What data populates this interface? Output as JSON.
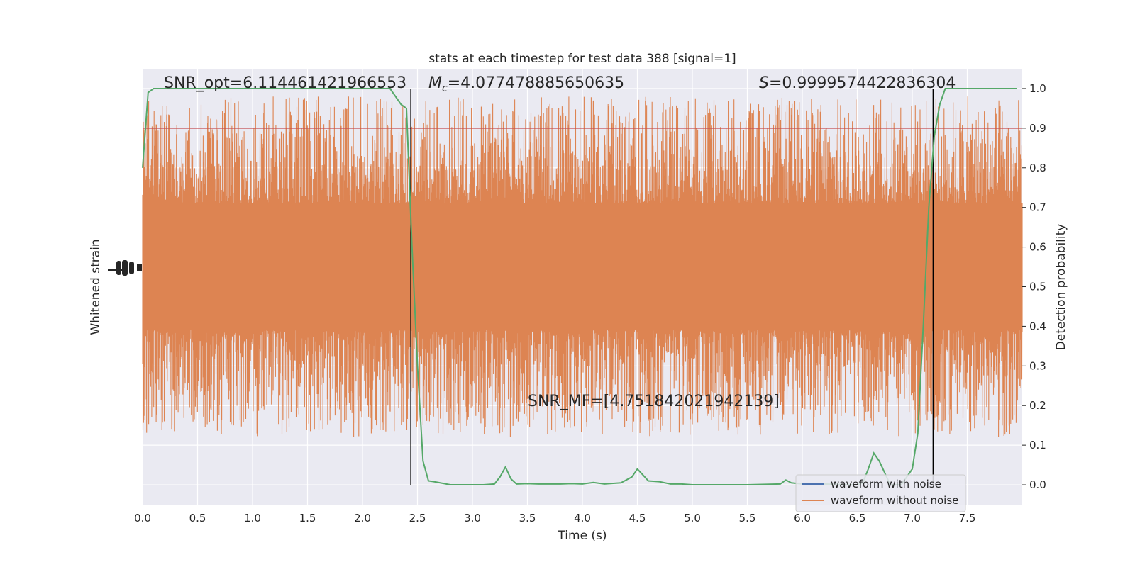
{
  "chart_data": {
    "type": "line",
    "title": "stats at each timestep for test data 388 [signal=1]",
    "xlabel": "Time (s)",
    "ylabel_left": "Whitened strain",
    "ylabel_right": "Detection probability",
    "xlim": [
      0.0,
      8.0
    ],
    "ylim_right": [
      -0.05,
      1.05
    ],
    "xticks": [
      "0.0",
      "0.5",
      "1.0",
      "1.5",
      "2.0",
      "2.5",
      "3.0",
      "3.5",
      "4.0",
      "4.5",
      "5.0",
      "5.5",
      "6.0",
      "6.5",
      "7.0",
      "7.5"
    ],
    "yticks_right": [
      "0.0",
      "0.1",
      "0.2",
      "0.3",
      "0.4",
      "0.5",
      "0.6",
      "0.7",
      "0.8",
      "0.9",
      "1.0"
    ],
    "grid": true,
    "legend_position": "lower-right",
    "series": [
      {
        "name": "waveform with noise",
        "color": "#4c72b0"
      },
      {
        "name": "waveform without noise",
        "color": "#dd8452"
      }
    ],
    "detection_probability": {
      "color": "#55a868",
      "x": [
        0.0,
        0.05,
        0.1,
        0.15,
        0.2,
        0.5,
        1.0,
        1.5,
        2.0,
        2.25,
        2.3,
        2.35,
        2.4,
        2.45,
        2.5,
        2.55,
        2.6,
        2.65,
        2.8,
        2.9,
        3.0,
        3.1,
        3.2,
        3.25,
        3.3,
        3.35,
        3.4,
        3.5,
        3.6,
        3.7,
        3.8,
        3.9,
        4.0,
        4.1,
        4.2,
        4.35,
        4.45,
        4.5,
        4.55,
        4.6,
        4.7,
        4.8,
        4.9,
        5.0,
        5.2,
        5.5,
        5.8,
        5.85,
        5.9,
        6.0,
        6.2,
        6.4,
        6.5,
        6.55,
        6.6,
        6.65,
        6.7,
        6.8,
        6.9,
        7.0,
        7.05,
        7.1,
        7.15,
        7.2,
        7.25,
        7.3,
        7.35,
        7.4,
        7.5,
        7.95
      ],
      "y": [
        0.8,
        0.99,
        1.0,
        1.0,
        1.0,
        1.0,
        1.0,
        1.0,
        1.0,
        1.0,
        0.98,
        0.96,
        0.95,
        0.6,
        0.3,
        0.06,
        0.01,
        0.008,
        0.0,
        0.0,
        0.0,
        0.0,
        0.002,
        0.02,
        0.045,
        0.015,
        0.002,
        0.003,
        0.002,
        0.002,
        0.002,
        0.003,
        0.002,
        0.006,
        0.002,
        0.005,
        0.02,
        0.04,
        0.025,
        0.01,
        0.008,
        0.002,
        0.002,
        0.0,
        0.0,
        0.0,
        0.002,
        0.012,
        0.005,
        0.002,
        0.002,
        0.0,
        0.0,
        0.005,
        0.04,
        0.08,
        0.06,
        0.0,
        0.0,
        0.04,
        0.13,
        0.4,
        0.7,
        0.88,
        0.96,
        1.0,
        1.0,
        1.0,
        1.0,
        1.0
      ]
    },
    "threshold": {
      "y": 0.9,
      "color": "#c44e52"
    },
    "vertical_lines": [
      2.44,
      7.19
    ],
    "annotations": {
      "snr_opt": "SNR_opt=6.114461421966553",
      "mc_symbol": "M",
      "mc_sub": "c",
      "mc_value": "=4.077478885650635",
      "s_symbol": "S",
      "s_value": "=0.9999574422836304",
      "snr_mf": "SNR_MF=[4.751842021942139]"
    },
    "waveform_noise_band": {
      "center": 0.55,
      "core_halfwidth": 0.16,
      "peak_halfwidth": 0.43
    }
  }
}
